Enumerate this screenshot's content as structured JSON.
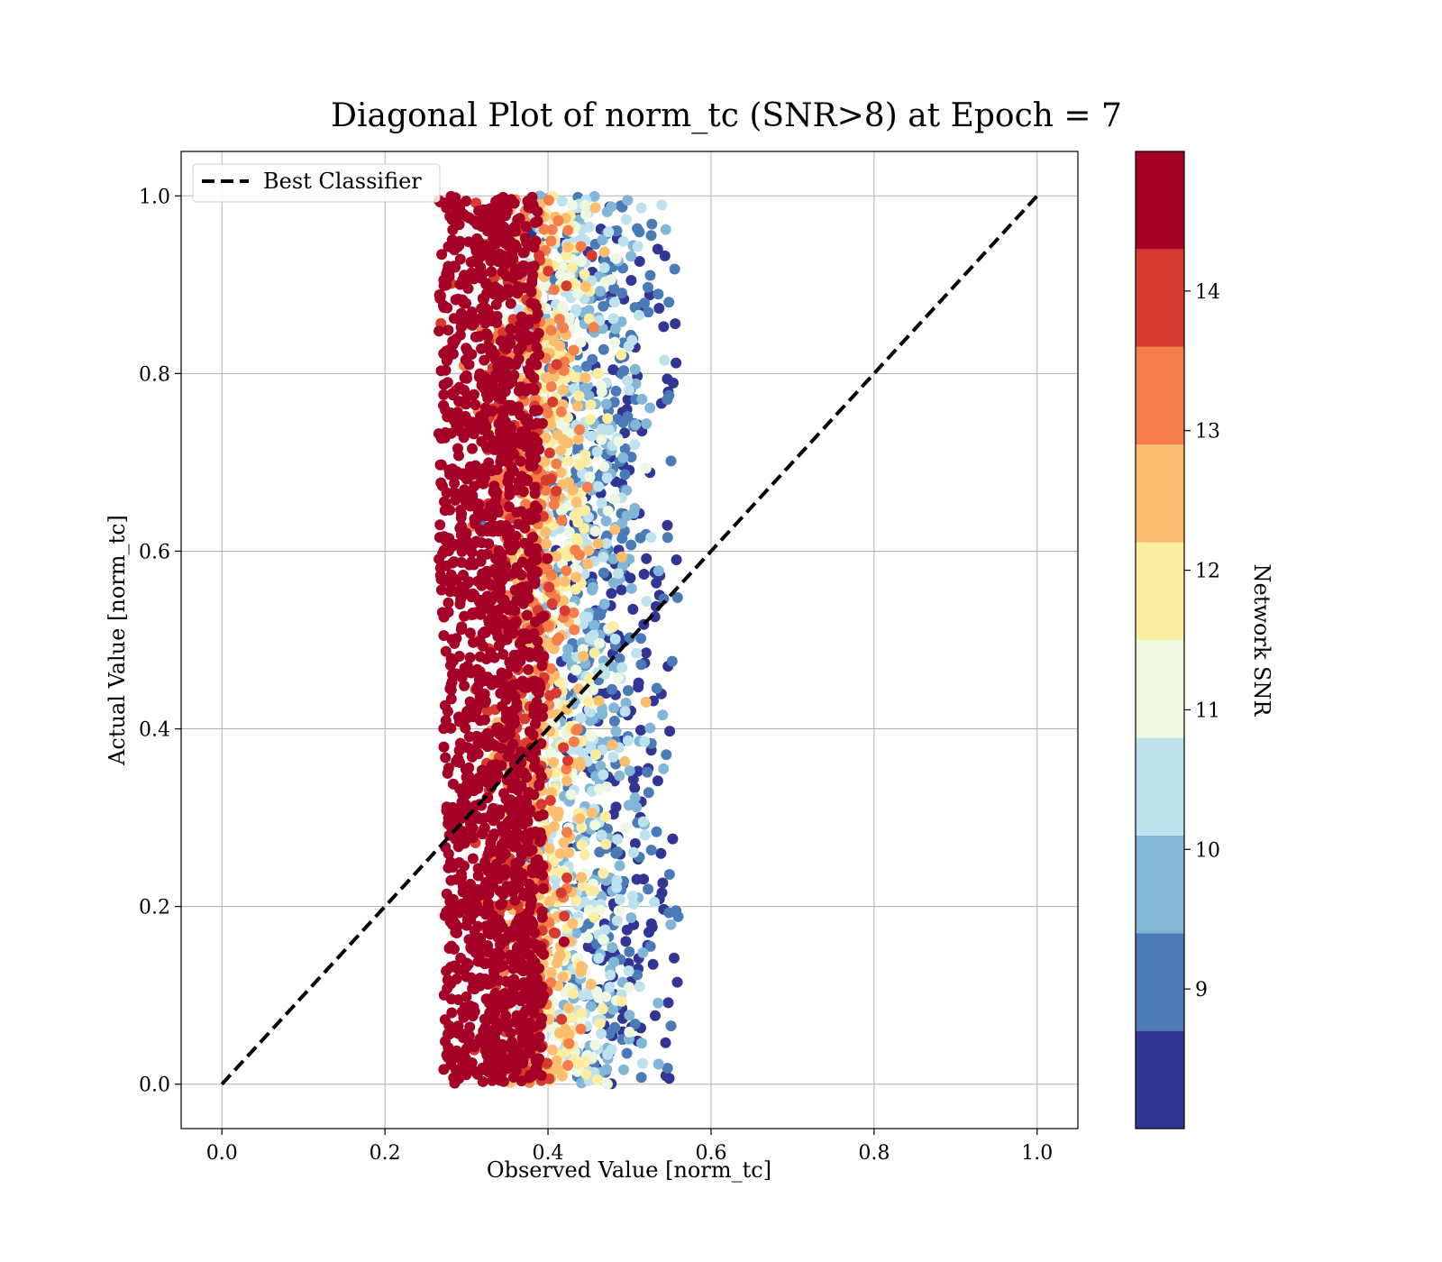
{
  "chart_data": {
    "type": "scatter",
    "title": "Diagonal Plot of norm_tc (SNR>8) at Epoch = 7",
    "xlabel": "Observed Value [norm_tc]",
    "ylabel": "Actual Value [norm_tc]",
    "xlim": [
      -0.05,
      1.05
    ],
    "ylim": [
      -0.05,
      1.05
    ],
    "xticks": [
      "0.0",
      "0.2",
      "0.4",
      "0.6",
      "0.8",
      "1.0"
    ],
    "yticks": [
      "0.0",
      "0.2",
      "0.4",
      "0.6",
      "0.8",
      "1.0"
    ],
    "grid": true,
    "legend": {
      "placement": "upper-left",
      "entries": [
        "Best Classifier"
      ]
    },
    "reference_line": {
      "name": "Best Classifier",
      "x": [
        0.0,
        1.0
      ],
      "y": [
        0.0,
        1.0
      ],
      "style": "dashed",
      "color": "#000000"
    },
    "scatter_summary": {
      "description_of_distribution": "dense vertical band of points; observed values concentrated between about 0.24 and 0.56 across all actual values 0.0 to 1.0",
      "observed_range": [
        0.24,
        0.56
      ],
      "actual_range": [
        0.0,
        1.0
      ],
      "high_snr_observed_center": 0.33,
      "point_count_rendered": 2600
    },
    "colorbar": {
      "label": "Network SNR",
      "range": [
        8.0,
        15.0
      ],
      "ticks": [
        "9",
        "10",
        "11",
        "12",
        "13",
        "14"
      ],
      "bins": [
        {
          "from": 8.0,
          "to": 8.7,
          "color": "#313695"
        },
        {
          "from": 8.7,
          "to": 9.4,
          "color": "#4a7bb7"
        },
        {
          "from": 9.4,
          "to": 10.1,
          "color": "#82b6d7"
        },
        {
          "from": 10.1,
          "to": 10.8,
          "color": "#bde2ee"
        },
        {
          "from": 10.8,
          "to": 11.5,
          "color": "#eef7e0"
        },
        {
          "from": 11.5,
          "to": 12.2,
          "color": "#fdeda1"
        },
        {
          "from": 12.2,
          "to": 12.9,
          "color": "#fcbe6e"
        },
        {
          "from": 12.9,
          "to": 13.6,
          "color": "#f57d4a"
        },
        {
          "from": 13.6,
          "to": 14.3,
          "color": "#d73a2e"
        },
        {
          "from": 14.3,
          "to": 15.0,
          "color": "#a50026"
        }
      ]
    }
  }
}
